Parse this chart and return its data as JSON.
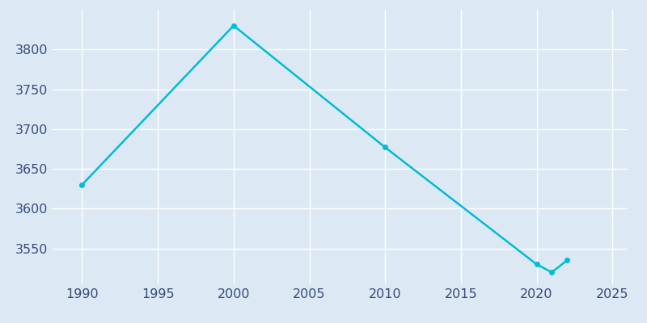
{
  "years": [
    1990,
    2000,
    2010,
    2020,
    2021,
    2022
  ],
  "population": [
    3630,
    3830,
    3677,
    3530,
    3520,
    3535
  ],
  "line_color": "#00BCD4",
  "marker": "o",
  "marker_size": 4,
  "line_width": 1.8,
  "bg_color": "#dce9f5",
  "plot_bg_color": "#dce9f5",
  "grid_color": "#ffffff",
  "tick_label_color": "#3a4a7a",
  "xlim": [
    1988,
    2026
  ],
  "ylim": [
    3505,
    3850
  ],
  "xticks": [
    1990,
    1995,
    2000,
    2005,
    2010,
    2015,
    2020,
    2025
  ],
  "yticks": [
    3550,
    3600,
    3650,
    3700,
    3750,
    3800
  ],
  "tick_fontsize": 11.5
}
